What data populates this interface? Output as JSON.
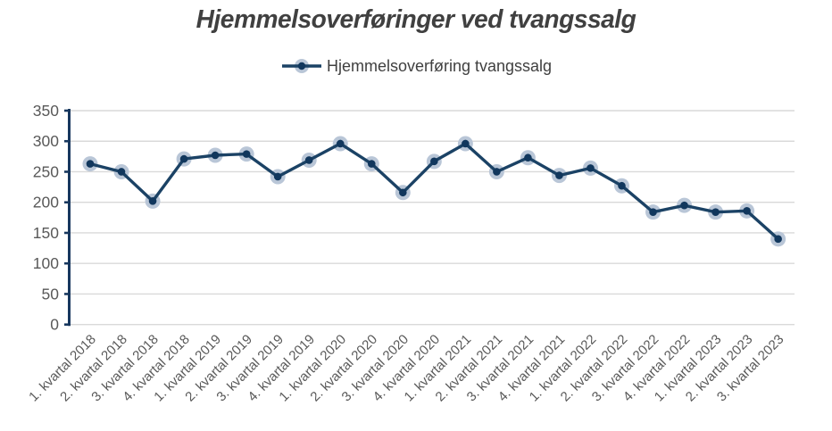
{
  "title": "Hjemmelsoverføringer ved tvangssalg",
  "legend": {
    "label": "Hjemmelsoverføring tvangssalg"
  },
  "colors": {
    "line": "#1b4265",
    "marker_dot": "#11375d",
    "marker_halo": "#b9c6d7",
    "grid": "#d9d9d9",
    "axis": "#17375e",
    "title_text": "#404040",
    "axis_text": "#595959",
    "background": "#ffffff"
  },
  "chart_data": {
    "type": "line",
    "title": "Hjemmelsoverføringer ved tvangssalg",
    "xlabel": "",
    "ylabel": "",
    "ylim": [
      0,
      350
    ],
    "ytick_step": 50,
    "grid": true,
    "legend_position": "top",
    "categories": [
      "1. kvartal 2018",
      "2. kvartal 2018",
      "3. kvartal 2018",
      "4. kvartal 2018",
      "1. kvartal 2019",
      "2. kvartal 2019",
      "3. kvartal 2019",
      "4. kvartal 2019",
      "1. kvartal 2020",
      "2. kvartal 2020",
      "3. kvartal 2020",
      "4. kvartal 2020",
      "1. kvartal 2021",
      "2. kvartal 2021",
      "3. kvartal 2021",
      "4. kvartal 2021",
      "1. kvartal 2022",
      "2. kvartal 2022",
      "3. kvartal 2022",
      "4. kvartal 2022",
      "1. kvartal 2023",
      "2. kvartal 2023",
      "3. kvartal 2023"
    ],
    "series": [
      {
        "name": "Hjemmelsoverføring tvangssalg",
        "values": [
          263,
          250,
          202,
          271,
          277,
          279,
          242,
          269,
          296,
          263,
          216,
          267,
          296,
          250,
          273,
          244,
          256,
          227,
          184,
          195,
          184,
          186,
          140
        ]
      }
    ]
  }
}
